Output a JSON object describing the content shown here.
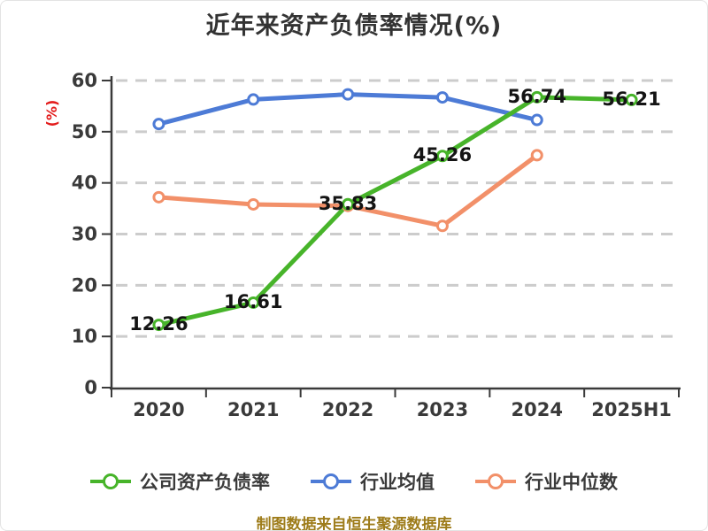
{
  "chart_data": {
    "type": "line",
    "title": "近年来资产负债率情况(%)",
    "ylabel": "(%)",
    "footer": "制图数据来自恒生聚源数据库",
    "ylim": [
      0,
      60
    ],
    "yticks": [
      0,
      10,
      20,
      30,
      40,
      50,
      60
    ],
    "categories": [
      "2020",
      "2021",
      "2022",
      "2023",
      "2024",
      "2025H1"
    ],
    "series": [
      {
        "name": "公司资产负债率",
        "color": "#47b42a",
        "values": [
          12.26,
          16.61,
          35.83,
          45.26,
          56.74,
          56.21
        ],
        "point_labels": [
          "12.26",
          "16.61",
          "35.83",
          "45.26",
          "56.74",
          "56.21"
        ]
      },
      {
        "name": "行业均值",
        "color": "#4d7bd6",
        "values": [
          51.5,
          56.3,
          57.3,
          56.7,
          52.3,
          null
        ],
        "point_labels": []
      },
      {
        "name": "行业中位数",
        "color": "#f29069",
        "values": [
          37.2,
          35.8,
          35.5,
          31.6,
          45.4,
          null
        ],
        "point_labels": []
      }
    ],
    "grid": "horizontal-dashed",
    "legend_position": "bottom",
    "colors": {
      "title": "#333333",
      "axis": "#3a3a3a",
      "tick_label": "#3a3a3a",
      "grid": "#cccccc",
      "ylabel": "#e31b1b",
      "point_label": "#141414",
      "footer": "#9e7c1a",
      "legend_text": "#3a3a3a",
      "background": "#ffffff"
    }
  }
}
